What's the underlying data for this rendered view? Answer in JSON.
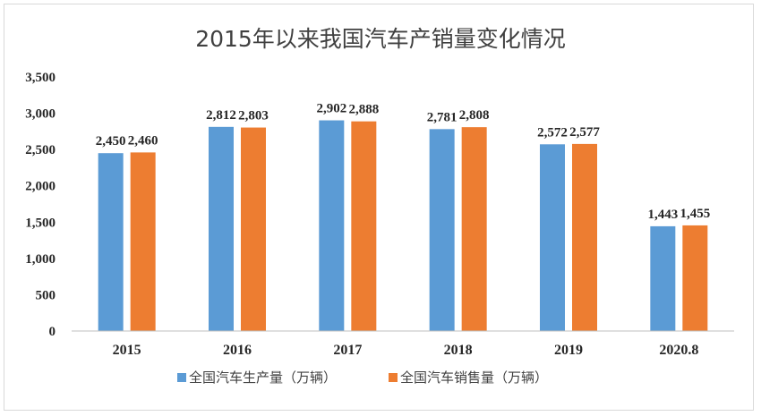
{
  "chart_data": {
    "type": "bar",
    "title": "2015年以来我国汽车产销量变化情况",
    "categories": [
      "2015",
      "2016",
      "2017",
      "2018",
      "2019",
      "2020.8"
    ],
    "series": [
      {
        "name": "全国汽车生产量（万辆）",
        "color": "#5b9bd5",
        "values": [
          2450,
          2812,
          2902,
          2781,
          2572,
          1443
        ],
        "labels": [
          "2,450",
          "2,812",
          "2,902",
          "2,781",
          "2,572",
          "1,443"
        ]
      },
      {
        "name": "全国汽车销售量（万辆）",
        "color": "#ed7d31",
        "values": [
          2460,
          2803,
          2888,
          2808,
          2577,
          1455
        ],
        "labels": [
          "2,460",
          "2,803",
          "2,888",
          "2,808",
          "2,577",
          "1,455"
        ]
      }
    ],
    "ylim": [
      0,
      3500
    ],
    "yticks": [
      0,
      500,
      1000,
      1500,
      2000,
      2500,
      3000,
      3500
    ],
    "ytick_labels": [
      "0",
      "500",
      "1,000",
      "1,500",
      "2,000",
      "2,500",
      "3,000",
      "3,500"
    ],
    "grid": false,
    "legend_position": "bottom"
  }
}
